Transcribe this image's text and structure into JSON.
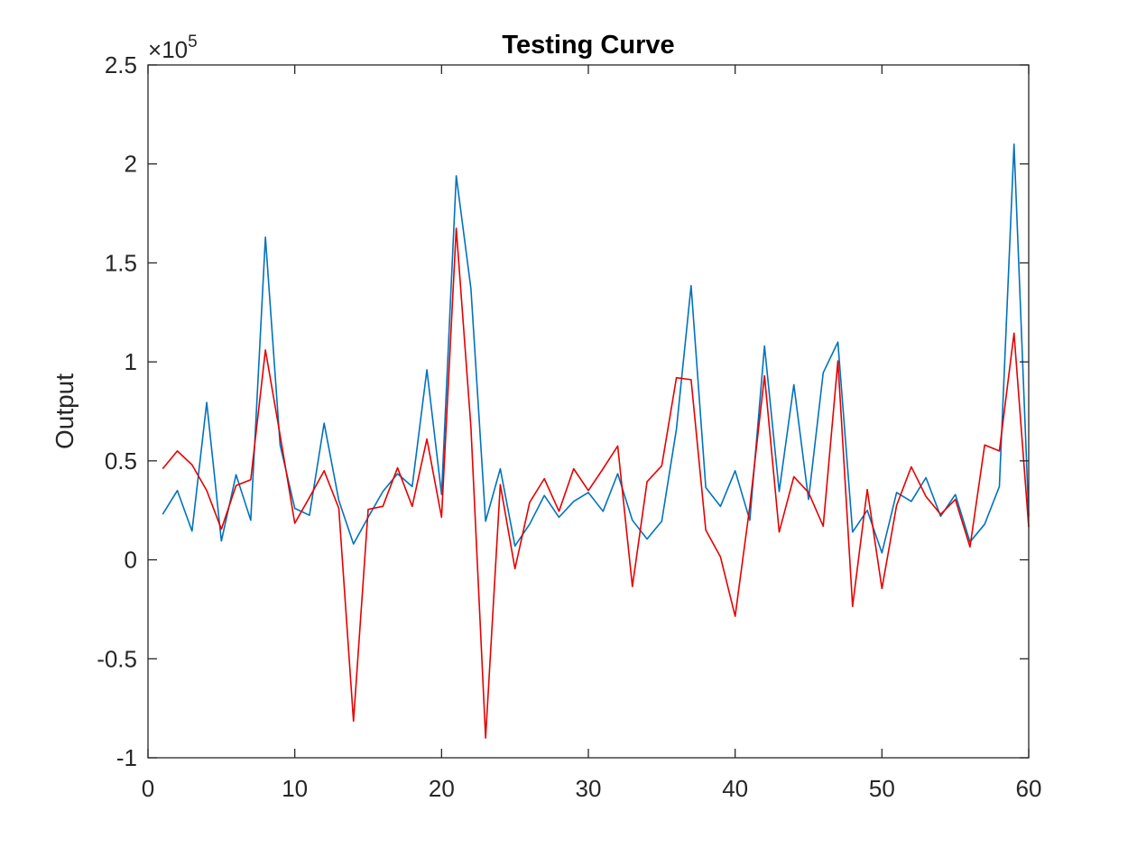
{
  "chart_data": {
    "type": "line",
    "title": "Testing Curve",
    "xlabel": "",
    "ylabel": "Output",
    "y_exponent_label": {
      "base": "10",
      "exponent": "5"
    },
    "xlim": [
      0,
      60
    ],
    "ylim": [
      -100000,
      250000
    ],
    "xticks": [
      0,
      10,
      20,
      30,
      40,
      50,
      60
    ],
    "xtick_labels": [
      "0",
      "10",
      "20",
      "30",
      "40",
      "50",
      "60"
    ],
    "yticks": [
      -100000,
      -50000,
      0,
      50000,
      100000,
      150000,
      200000,
      250000
    ],
    "ytick_labels": [
      "-1",
      "-0.5",
      "0",
      "0.5",
      "1",
      "1.5",
      "2",
      "2.5"
    ],
    "grid": false,
    "legend": "none",
    "x": [
      1,
      2,
      3,
      4,
      5,
      6,
      7,
      8,
      9,
      10,
      11,
      12,
      13,
      14,
      15,
      16,
      17,
      18,
      19,
      20,
      21,
      22,
      23,
      24,
      25,
      26,
      27,
      28,
      29,
      30,
      31,
      32,
      33,
      34,
      35,
      36,
      37,
      38,
      39,
      40,
      41,
      42,
      43,
      44,
      45,
      46,
      47,
      48,
      49,
      50,
      51,
      52,
      53,
      54,
      55,
      56,
      57,
      58,
      59,
      60
    ],
    "series": [
      {
        "color": "#0072BD",
        "values": [
          23000,
          35000,
          14500,
          79500,
          9500,
          43000,
          20000,
          163000,
          58000,
          26000,
          22500,
          69000,
          30000,
          8000,
          21500,
          34500,
          43500,
          37000,
          96000,
          33000,
          194000,
          137000,
          19500,
          46000,
          7000,
          18000,
          32500,
          21500,
          29500,
          34000,
          24500,
          43500,
          20000,
          10500,
          19500,
          66000,
          138500,
          36500,
          27000,
          45000,
          20000,
          108000,
          34500,
          88500,
          30500,
          94500,
          110000,
          14000,
          25000,
          3500,
          34000,
          29500,
          41500,
          22000,
          33000,
          9000,
          18000,
          37000,
          210000,
          22000
        ]
      },
      {
        "color": "#E60000",
        "values": [
          46000,
          55000,
          48000,
          35000,
          15500,
          37500,
          40500,
          106000,
          63000,
          18500,
          31500,
          45000,
          26000,
          -81500,
          25500,
          27000,
          46500,
          27000,
          61000,
          21500,
          167500,
          67000,
          -90000,
          38000,
          -4500,
          29000,
          41000,
          24500,
          46000,
          35000,
          46000,
          57500,
          -13500,
          39500,
          47500,
          92000,
          91000,
          15000,
          1500,
          -28500,
          27000,
          93000,
          14000,
          42000,
          34000,
          17000,
          100500,
          -23500,
          35500,
          -14500,
          27500,
          47000,
          32000,
          23000,
          30500,
          6500,
          58000,
          55000,
          114500,
          16500
        ]
      }
    ]
  }
}
